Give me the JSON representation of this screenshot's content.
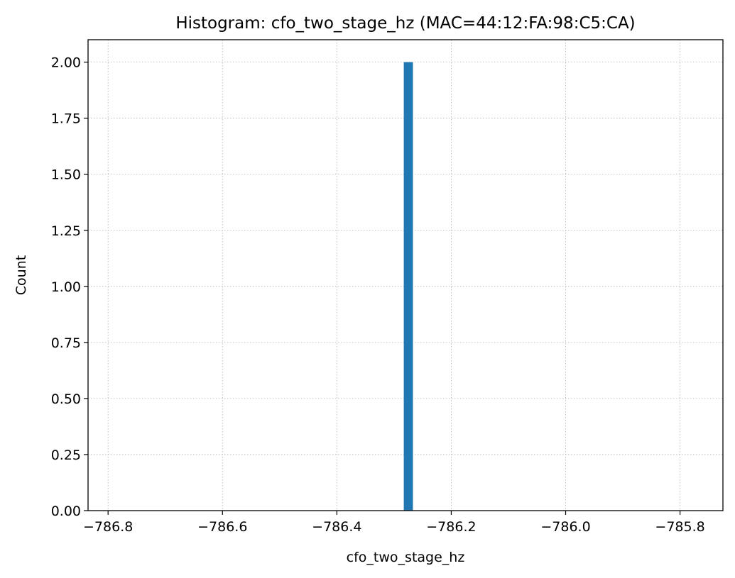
{
  "chart_data": {
    "type": "bar",
    "title": "Histogram: cfo_two_stage_hz (MAC=44:12:FA:98:C5:CA)",
    "xlabel": "cfo_two_stage_hz",
    "ylabel": "Count",
    "xlim": [
      -786.835,
      -785.725
    ],
    "ylim": [
      0,
      2.1
    ],
    "x_ticks": [
      -786.8,
      -786.6,
      -786.4,
      -786.2,
      -786.0,
      -785.8
    ],
    "x_tick_labels": [
      "−786.8",
      "−786.6",
      "−786.4",
      "−786.2",
      "−786.0",
      "−785.8"
    ],
    "y_ticks": [
      0,
      0.25,
      0.5,
      0.75,
      1.0,
      1.25,
      1.5,
      1.75,
      2.0
    ],
    "y_tick_labels": [
      "0.00",
      "0.25",
      "0.50",
      "0.75",
      "1.00",
      "1.25",
      "1.50",
      "1.75",
      "2.00"
    ],
    "grid": true,
    "bars": [
      {
        "x_start": -786.283,
        "x_end": -786.267,
        "count": 2
      }
    ],
    "colors": {
      "bar": "#1f77b4",
      "grid": "#b0b0b0"
    }
  }
}
